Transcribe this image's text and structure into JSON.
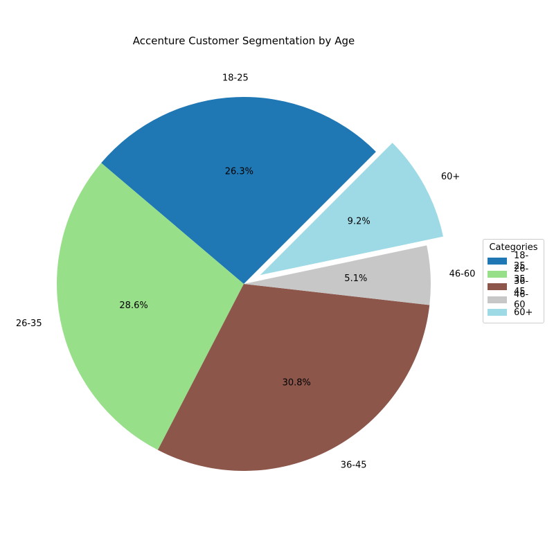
{
  "chart_data": {
    "type": "pie",
    "title": "Accenture Customer Segmentation by Age",
    "categories": [
      "18-25",
      "26-35",
      "36-45",
      "46-60",
      "60+"
    ],
    "values": [
      26.3,
      28.6,
      30.8,
      5.1,
      9.2
    ],
    "value_labels": [
      "26.3%",
      "28.6%",
      "30.8%",
      "5.1%",
      "9.2%"
    ],
    "colors": [
      "#1f77b4",
      "#98df8a",
      "#8c564b",
      "#c7c7c7",
      "#9edae5"
    ],
    "exploded": [
      false,
      false,
      false,
      false,
      true
    ],
    "start_angle_deg": 45,
    "direction": "counterclockwise",
    "legend": {
      "title": "Categories",
      "placement": "center-right"
    }
  }
}
